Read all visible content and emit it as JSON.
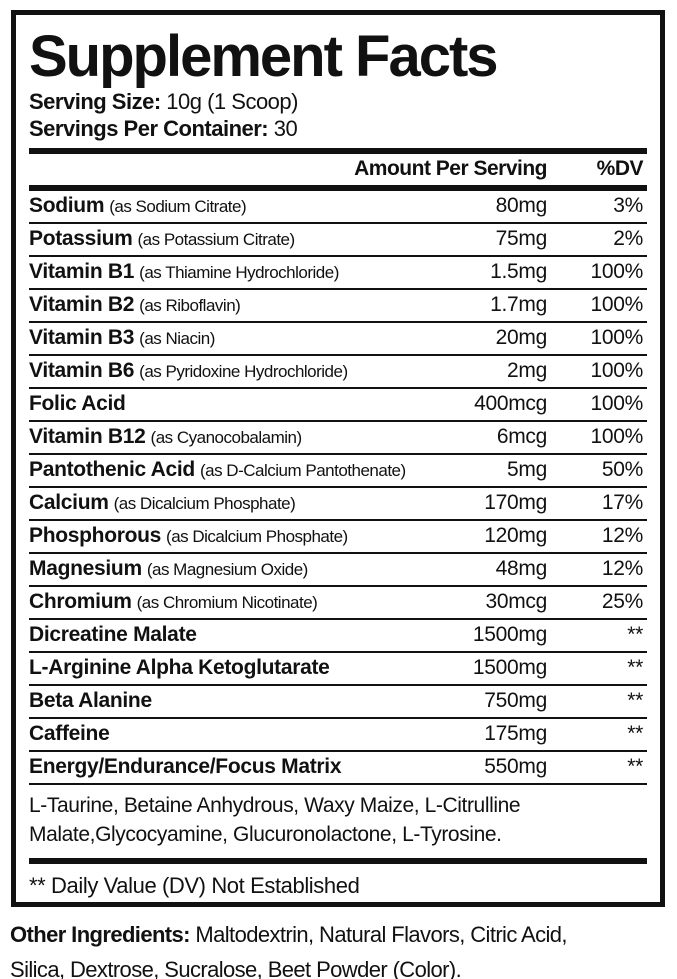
{
  "colors": {
    "ink": "#111111",
    "background": "#ffffff"
  },
  "title": "Supplement Facts",
  "serving": {
    "size_label": "Serving Size:",
    "size_value": "10g (1 Scoop)",
    "container_label": "Servings Per Container:",
    "container_value": "30"
  },
  "table": {
    "header": {
      "amount": "Amount Per Serving",
      "dv": "%DV"
    },
    "rows": [
      {
        "name": "Sodium",
        "desc": "(as Sodium Citrate)",
        "amount": "80mg",
        "dv": "3%"
      },
      {
        "name": "Potassium",
        "desc": "(as Potassium Citrate)",
        "amount": "75mg",
        "dv": "2%"
      },
      {
        "name": "Vitamin B1",
        "desc": "(as Thiamine Hydrochloride)",
        "amount": "1.5mg",
        "dv": "100%"
      },
      {
        "name": "Vitamin B2",
        "desc": "(as Riboflavin)",
        "amount": "1.7mg",
        "dv": "100%"
      },
      {
        "name": "Vitamin B3",
        "desc": "(as Niacin)",
        "amount": "20mg",
        "dv": "100%"
      },
      {
        "name": "Vitamin B6",
        "desc": "(as Pyridoxine Hydrochloride)",
        "amount": "2mg",
        "dv": "100%"
      },
      {
        "name": "Folic Acid",
        "desc": "",
        "amount": "400mcg",
        "dv": "100%"
      },
      {
        "name": "Vitamin B12",
        "desc": "(as Cyanocobalamin)",
        "amount": "6mcg",
        "dv": "100%"
      },
      {
        "name": "Pantothenic Acid",
        "desc": "(as D-Calcium Pantothenate)",
        "amount": "5mg",
        "dv": "50%"
      },
      {
        "name": "Calcium",
        "desc": "(as Dicalcium Phosphate)",
        "amount": "170mg",
        "dv": "17%"
      },
      {
        "name": "Phosphorous",
        "desc": "(as Dicalcium Phosphate)",
        "amount": "120mg",
        "dv": "12%"
      },
      {
        "name": "Magnesium",
        "desc": "(as Magnesium Oxide)",
        "amount": "48mg",
        "dv": "12%"
      },
      {
        "name": "Chromium",
        "desc": "(as Chromium Nicotinate)",
        "amount": "30mcg",
        "dv": "25%"
      },
      {
        "name": "Dicreatine Malate",
        "desc": "",
        "amount": "1500mg",
        "dv": "**"
      },
      {
        "name": "L-Arginine Alpha Ketoglutarate",
        "desc": "",
        "amount": "1500mg",
        "dv": "**"
      },
      {
        "name": "Beta Alanine",
        "desc": "",
        "amount": "750mg",
        "dv": "**"
      },
      {
        "name": "Caffeine",
        "desc": "",
        "amount": "175mg",
        "dv": "**"
      },
      {
        "name": "Energy/Endurance/Focus Matrix",
        "desc": "",
        "amount": "550mg",
        "dv": "**"
      }
    ]
  },
  "matrix_ingredients": "L-Taurine, Betaine Anhydrous, Waxy Maize,  L-Citrulline\nMalate,Glycocyamine, Glucuronolactone, L-Tyrosine.",
  "footnote": "** Daily Value (DV) Not Established",
  "other_ingredients": {
    "label": "Other Ingredients:",
    "value": "Maltodextrin, Natural Flavors, Citric Acid,\nSilica, Dextrose, Sucralose, Beet Powder (Color)."
  }
}
